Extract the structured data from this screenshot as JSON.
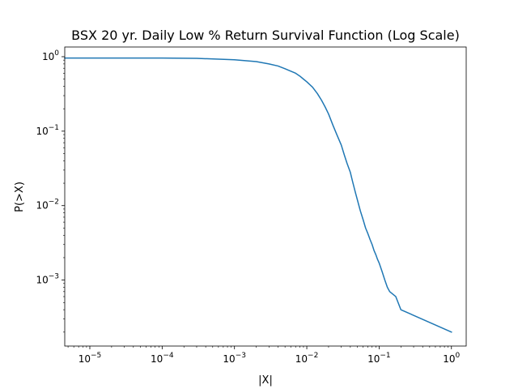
{
  "chart_data": {
    "type": "line",
    "title": "BSX 20 yr. Daily Low % Return Survival Function (Log Scale)",
    "xlabel": "|X|",
    "ylabel": "P(>X)",
    "xscale": "log",
    "yscale": "log",
    "xlim": [
      4.5e-06,
      1.6
    ],
    "ylim": [
      0.00013,
      1.35
    ],
    "grid": false,
    "legend": "none",
    "line_color": "#1f77b4",
    "xticks": [
      {
        "value": 1e-05,
        "base": "10",
        "exp": "−5"
      },
      {
        "value": 0.0001,
        "base": "10",
        "exp": "−4"
      },
      {
        "value": 0.001,
        "base": "10",
        "exp": "−3"
      },
      {
        "value": 0.01,
        "base": "10",
        "exp": "−2"
      },
      {
        "value": 0.1,
        "base": "10",
        "exp": "−1"
      },
      {
        "value": 1,
        "base": "10",
        "exp": "0"
      }
    ],
    "yticks": [
      {
        "value": 0.001,
        "base": "10",
        "exp": "−3"
      },
      {
        "value": 0.01,
        "base": "10",
        "exp": "−2"
      },
      {
        "value": 0.1,
        "base": "10",
        "exp": "−1"
      },
      {
        "value": 1,
        "base": "10",
        "exp": "0"
      }
    ],
    "series": [
      {
        "x": [
          4.5e-06,
          1e-05,
          0.0001,
          0.0003,
          0.001,
          0.002,
          0.003,
          0.004,
          0.005,
          0.006,
          0.007,
          0.008,
          0.009,
          0.01,
          0.012,
          0.014,
          0.016,
          0.018,
          0.02,
          0.023,
          0.026,
          0.03,
          0.033,
          0.036,
          0.04,
          0.043,
          0.047,
          0.05,
          0.055,
          0.06,
          0.065,
          0.07,
          0.075,
          0.08,
          0.085,
          0.09,
          0.095,
          0.1,
          0.11,
          0.12,
          0.13,
          0.14,
          0.17,
          0.2,
          1.0
        ],
        "y": [
          0.96,
          0.96,
          0.96,
          0.95,
          0.91,
          0.86,
          0.8,
          0.75,
          0.69,
          0.64,
          0.6,
          0.55,
          0.5,
          0.46,
          0.39,
          0.32,
          0.26,
          0.21,
          0.17,
          0.12,
          0.09,
          0.065,
          0.048,
          0.037,
          0.028,
          0.021,
          0.015,
          0.012,
          0.0085,
          0.0065,
          0.005,
          0.0042,
          0.0035,
          0.003,
          0.0025,
          0.0022,
          0.0019,
          0.0017,
          0.0013,
          0.001,
          0.0008,
          0.0007,
          0.0006,
          0.0004,
          0.0002
        ]
      }
    ]
  }
}
